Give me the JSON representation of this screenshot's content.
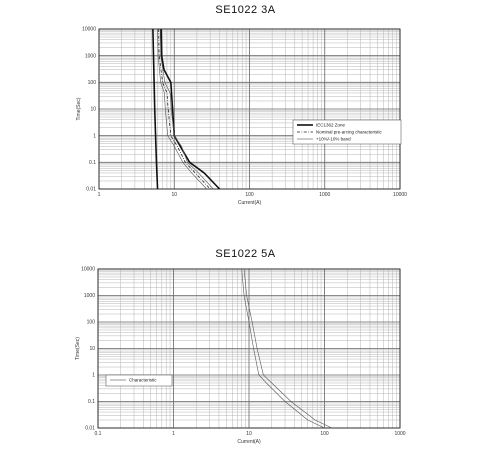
{
  "chart_data": [
    {
      "type": "line",
      "title": "SE1022    3A",
      "xlabel": "Current(A)",
      "ylabel": "Time(Sec)",
      "x_scale": "log",
      "y_scale": "log",
      "xlim": [
        1,
        10000
      ],
      "ylim": [
        0.01,
        10000
      ],
      "x_ticks": [
        "1",
        "10",
        "100",
        "1000",
        "10000"
      ],
      "y_ticks": [
        "0.01",
        "0.1",
        "1",
        "10",
        "100",
        "1000",
        "10000"
      ],
      "grid": true,
      "legend_position": "middle-right",
      "legend": [
        "IEC1362 Zone",
        "Nominal pre-arcing characteristic",
        "+10%/-10% band"
      ],
      "series": [
        {
          "name": "IEC1362 Zone",
          "style": "thick",
          "x": [
            5.2,
            5.3,
            5.4,
            5.5,
            5.8,
            6.0
          ],
          "y": [
            10000,
            1000,
            100,
            10,
            0.1,
            0.01
          ]
        },
        {
          "name": "IEC1362 Zone",
          "style": "thick",
          "x": [
            6.7,
            6.8,
            7.3,
            9.0,
            9.5,
            10.0,
            12.0,
            16.0,
            25.0,
            40.0
          ],
          "y": [
            10000,
            1000,
            300,
            100,
            10,
            1,
            0.4,
            0.1,
            0.04,
            0.01
          ]
        },
        {
          "name": "Nominal pre-arcing characteristic",
          "style": "dashdot",
          "x": [
            6.2,
            6.3,
            7.0,
            8.0,
            8.3,
            9.0,
            11.0,
            14.0,
            19.0,
            30.0
          ],
          "y": [
            10000,
            1000,
            100,
            40,
            10,
            1,
            0.4,
            0.1,
            0.04,
            0.01
          ]
        },
        {
          "name": "+10%/-10% band",
          "style": "thin",
          "x": [
            6.0,
            6.1,
            6.6,
            7.4,
            7.6,
            8.2,
            10.0,
            13.0,
            17.0,
            27.0
          ],
          "y": [
            10000,
            1000,
            100,
            40,
            10,
            1,
            0.4,
            0.1,
            0.04,
            0.01
          ]
        },
        {
          "name": "+10%/-10% band",
          "style": "thin",
          "x": [
            6.5,
            6.6,
            7.5,
            8.8,
            9.1,
            10.0,
            12.5,
            15.0,
            21.0,
            33.0
          ],
          "y": [
            10000,
            1000,
            100,
            40,
            10,
            1,
            0.4,
            0.1,
            0.04,
            0.01
          ]
        }
      ]
    },
    {
      "type": "line",
      "title": "SE1022    5A",
      "xlabel": "Current(A)",
      "ylabel": "Time(Sec)",
      "x_scale": "log",
      "y_scale": "log",
      "xlim": [
        0.1,
        1000
      ],
      "ylim": [
        0.01,
        10000
      ],
      "x_ticks": [
        "0.1",
        "1",
        "10",
        "100",
        "1000"
      ],
      "y_ticks": [
        "0.01",
        "0.1",
        "1",
        "10",
        "100",
        "1000",
        "10000"
      ],
      "grid": true,
      "legend_position": "middle-left",
      "legend": [
        "Characteristic"
      ],
      "series": [
        {
          "name": "Characteristic",
          "style": "thin",
          "x": [
            8.0,
            8.6,
            10.0,
            11.5,
            13.5,
            17.0,
            30.0,
            60.0,
            100.0
          ],
          "y": [
            10000,
            1000,
            100,
            10,
            1,
            0.5,
            0.1,
            0.02,
            0.01
          ]
        },
        {
          "name": "Characteristic",
          "style": "thin",
          "x": [
            8.6,
            9.3,
            11.0,
            12.8,
            15.5,
            20.0,
            36.0,
            75.0,
            125.0
          ],
          "y": [
            10000,
            1000,
            100,
            10,
            1,
            0.5,
            0.1,
            0.02,
            0.01
          ]
        }
      ]
    }
  ]
}
